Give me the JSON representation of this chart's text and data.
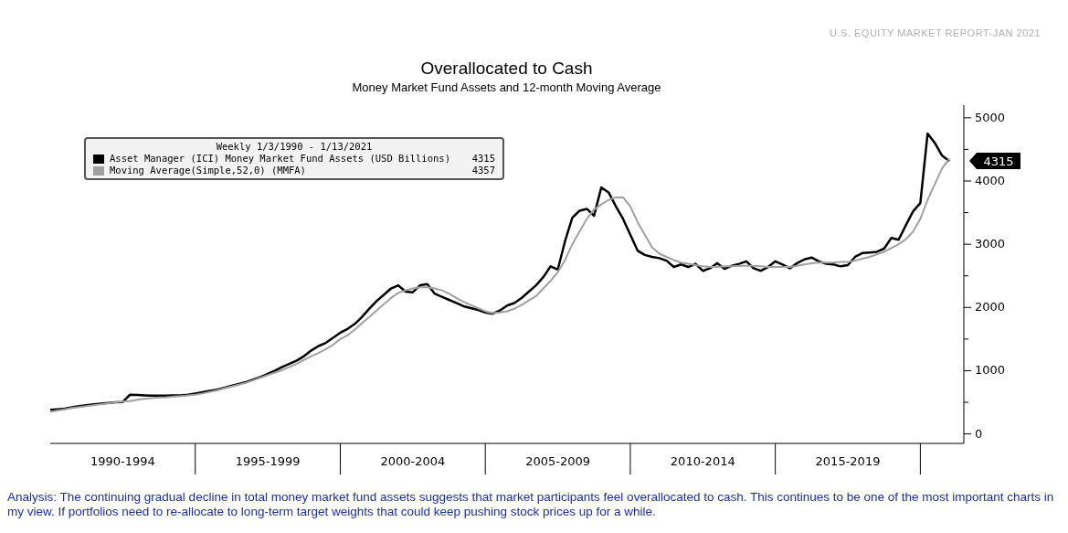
{
  "chart_data": {
    "type": "line",
    "title": "Overallocated to Cash",
    "subtitle": "Money Market Fund Assets and 12-month Moving Average",
    "legend_title": "Weekly 1/3/1990 - 1/13/2021",
    "legend": "top left",
    "grid": false,
    "marker": "none",
    "line_style": "solid",
    "annotations": [
      "U.S. EQUITY MARKET REPORT-JAN 2021",
      "Analysis: The continuing gradual decline in total money market fund assets suggests that market participants feel overallocated to cash. This continues to be one of the most important charts in my view. If portfolios need to re-allocate to long-term target weights that could keep pushing stock prices up for a while.",
      "4315",
      "4315",
      "4357"
    ],
    "categories": [
      null,
      null,
      null,
      null,
      null,
      null,
      null,
      null,
      null,
      null,
      "1990-1994",
      null,
      null,
      null,
      null,
      null,
      null,
      null,
      null,
      null,
      null,
      null,
      null,
      null,
      null,
      null,
      null,
      null,
      null,
      null,
      "1995-1999",
      null,
      null,
      null,
      null,
      null,
      null,
      null,
      null,
      null,
      null,
      null,
      null,
      null,
      null,
      null,
      null,
      null,
      null,
      null,
      "2000-2004",
      null,
      null,
      null,
      null,
      null,
      null,
      null,
      null,
      null,
      null,
      null,
      null,
      null,
      null,
      null,
      null,
      null,
      null,
      null,
      "2005-2009",
      null,
      null,
      null,
      null,
      null,
      null,
      null,
      null,
      null,
      null,
      null,
      null,
      null,
      null,
      null,
      null,
      null,
      null,
      null,
      "2010-2014",
      null,
      null,
      null,
      null,
      null,
      null,
      null,
      null,
      null,
      null,
      null,
      null,
      null,
      null,
      null,
      null,
      null,
      null,
      null,
      "2015-2019",
      null,
      null,
      null,
      null,
      null,
      null,
      null,
      null,
      null,
      null,
      null,
      null,
      null,
      null,
      null,
      null
    ],
    "ylim": [
      -150,
      5200
    ],
    "yticks": [
      0,
      {
        "value": 500,
        "label": null
      },
      1000,
      {
        "value": 1500,
        "label": null
      },
      2000,
      {
        "value": 2500,
        "label": null
      },
      3000,
      {
        "value": 3500,
        "label": null
      },
      4000,
      {
        "value": 4500,
        "label": null
      },
      5000
    ],
    "series": [
      {
        "name": "Asset Manager (ICI) Money Market Fund Assets (USD Billions)",
        "color": "#000000",
        "values": [
          380,
          390,
          400,
          420,
          440,
          455,
          470,
          480,
          490,
          500,
          505,
          620,
          615,
          610,
          605,
          605,
          605,
          610,
          610,
          620,
          640,
          660,
          680,
          700,
          730,
          760,
          790,
          820,
          860,
          900,
          950,
          1000,
          1060,
          1110,
          1160,
          1230,
          1320,
          1390,
          1440,
          1520,
          1600,
          1660,
          1740,
          1850,
          1980,
          2100,
          2200,
          2300,
          2350,
          2250,
          2240,
          2350,
          2370,
          2220,
          2170,
          2120,
          2070,
          2020,
          1990,
          1960,
          1920,
          1900,
          1950,
          2030,
          2070,
          2150,
          2250,
          2350,
          2480,
          2650,
          2600,
          3050,
          3420,
          3530,
          3560,
          3450,
          3900,
          3820,
          3600,
          3400,
          3150,
          2900,
          2830,
          2800,
          2780,
          2740,
          2640,
          2680,
          2640,
          2690,
          2580,
          2620,
          2700,
          2610,
          2660,
          2690,
          2730,
          2620,
          2580,
          2640,
          2730,
          2680,
          2620,
          2700,
          2760,
          2790,
          2730,
          2690,
          2680,
          2650,
          2670,
          2800,
          2860,
          2870,
          2880,
          2930,
          3100,
          3070,
          3300,
          3520,
          3650,
          4750,
          4600,
          4400,
          4315,
          null,
          null
        ]
      },
      {
        "name": "Moving Average(Simple,52,0) (MMFA)",
        "color": "#a0a0a0",
        "values": [
          350,
          370,
          390,
          410,
          425,
          440,
          455,
          470,
          485,
          500,
          510,
          520,
          540,
          555,
          565,
          575,
          580,
          590,
          600,
          610,
          620,
          640,
          665,
          690,
          720,
          750,
          780,
          810,
          850,
          890,
          930,
          970,
          1010,
          1060,
          1110,
          1170,
          1230,
          1280,
          1340,
          1410,
          1500,
          1560,
          1650,
          1750,
          1850,
          1950,
          2050,
          2150,
          2230,
          2270,
          2300,
          2320,
          2320,
          2300,
          2270,
          2220,
          2150,
          2090,
          2040,
          1990,
          1940,
          1910,
          1920,
          1940,
          1980,
          2040,
          2110,
          2180,
          2300,
          2420,
          2560,
          2750,
          3000,
          3200,
          3400,
          3550,
          3630,
          3700,
          3740,
          3740,
          3600,
          3350,
          3150,
          2950,
          2850,
          2800,
          2750,
          2710,
          2690,
          2670,
          2650,
          2640,
          2640,
          2650,
          2650,
          2660,
          2660,
          2660,
          2650,
          2640,
          2640,
          2640,
          2640,
          2660,
          2680,
          2700,
          2710,
          2710,
          2710,
          2720,
          2720,
          2740,
          2770,
          2800,
          2840,
          2880,
          2940,
          3000,
          3080,
          3200,
          3400,
          3700,
          3950,
          4200,
          4357,
          null,
          null
        ]
      }
    ]
  }
}
